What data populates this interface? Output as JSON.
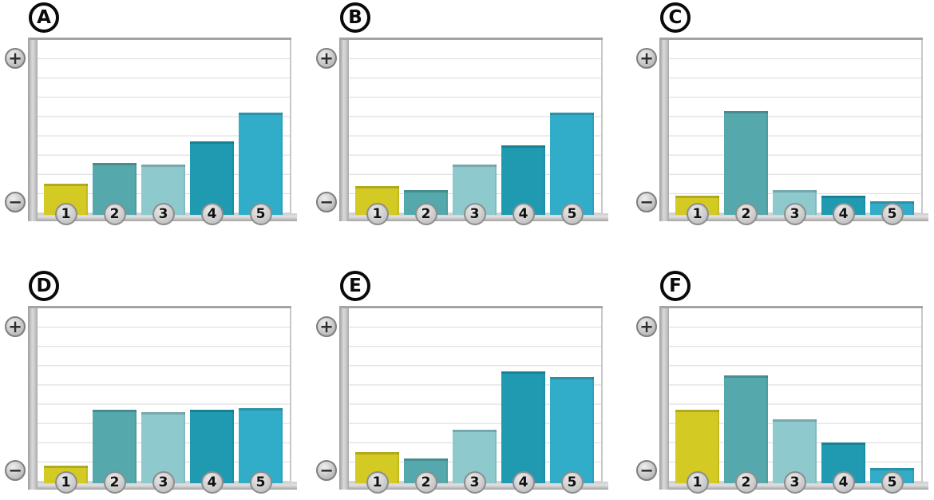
{
  "axis_icons": {
    "plus": "+",
    "minus": "−"
  },
  "bar_colors": [
    "#d3ca24",
    "#55a8ab",
    "#8ec9ce",
    "#1f9ab1",
    "#32adc9"
  ],
  "chart_data": {
    "type": "bar",
    "title": "",
    "xlabel": "",
    "ylabel": "",
    "categories": [
      "1",
      "2",
      "3",
      "4",
      "5"
    ],
    "y_axis": {
      "top_symbol": "+",
      "bottom_symbol": "−",
      "numeric_labels": false
    },
    "gridlines": 8,
    "grid": true,
    "legend_position": "none",
    "units_note": "heights estimated in gridline units; plot height spans 9 units",
    "ylim": [
      0,
      9
    ],
    "panels": [
      {
        "label": "A",
        "values": [
          1.6,
          2.7,
          2.6,
          3.8,
          5.3
        ]
      },
      {
        "label": "B",
        "values": [
          1.5,
          1.3,
          2.6,
          3.6,
          5.3
        ]
      },
      {
        "label": "C",
        "values": [
          1.0,
          5.4,
          1.3,
          1.0,
          0.7
        ]
      },
      {
        "label": "D",
        "values": [
          0.9,
          3.8,
          3.7,
          3.8,
          3.9
        ]
      },
      {
        "label": "E",
        "values": [
          1.6,
          1.3,
          2.8,
          5.8,
          5.5
        ]
      },
      {
        "label": "F",
        "values": [
          3.8,
          5.6,
          3.3,
          2.1,
          0.8
        ]
      }
    ]
  }
}
